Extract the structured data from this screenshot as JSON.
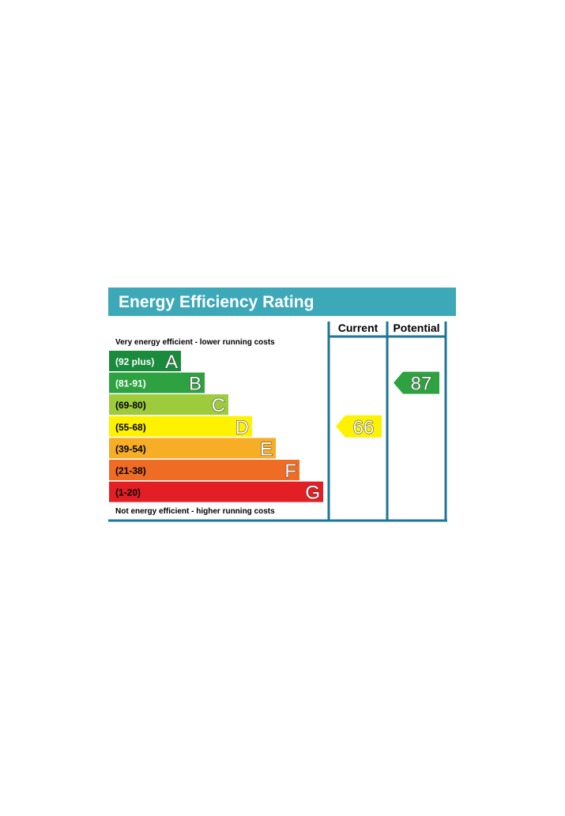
{
  "chart_data": {
    "type": "bar",
    "title": "Energy Efficiency Rating",
    "header_color": "#3da8b8",
    "frame_color": "#1e7596",
    "columns": {
      "current": "Current",
      "potential": "Potential"
    },
    "top_note": "Very energy efficient - lower running costs",
    "bottom_note": "Not energy efficient - higher running costs",
    "bands": [
      {
        "letter": "A",
        "range": "(92 plus)",
        "color": "#1a8a3c",
        "text_color": "#ffffff"
      },
      {
        "letter": "B",
        "range": "(81-91)",
        "color": "#2ea241",
        "text_color": "#ffffff"
      },
      {
        "letter": "C",
        "range": "(69-80)",
        "color": "#9dcb3c",
        "text_color": "#000000"
      },
      {
        "letter": "D",
        "range": "(55-68)",
        "color": "#fef200",
        "text_color": "#000000"
      },
      {
        "letter": "E",
        "range": "(39-54)",
        "color": "#f7ad25",
        "text_color": "#000000"
      },
      {
        "letter": "F",
        "range": "(21-38)",
        "color": "#ee6c24",
        "text_color": "#000000"
      },
      {
        "letter": "G",
        "range": "(1-20)",
        "color": "#e31e24",
        "text_color": "#000000"
      }
    ],
    "current": {
      "value": 66,
      "band": "D",
      "color": "#fef200"
    },
    "potential": {
      "value": 87,
      "band": "B",
      "color": "#2ea241"
    }
  }
}
